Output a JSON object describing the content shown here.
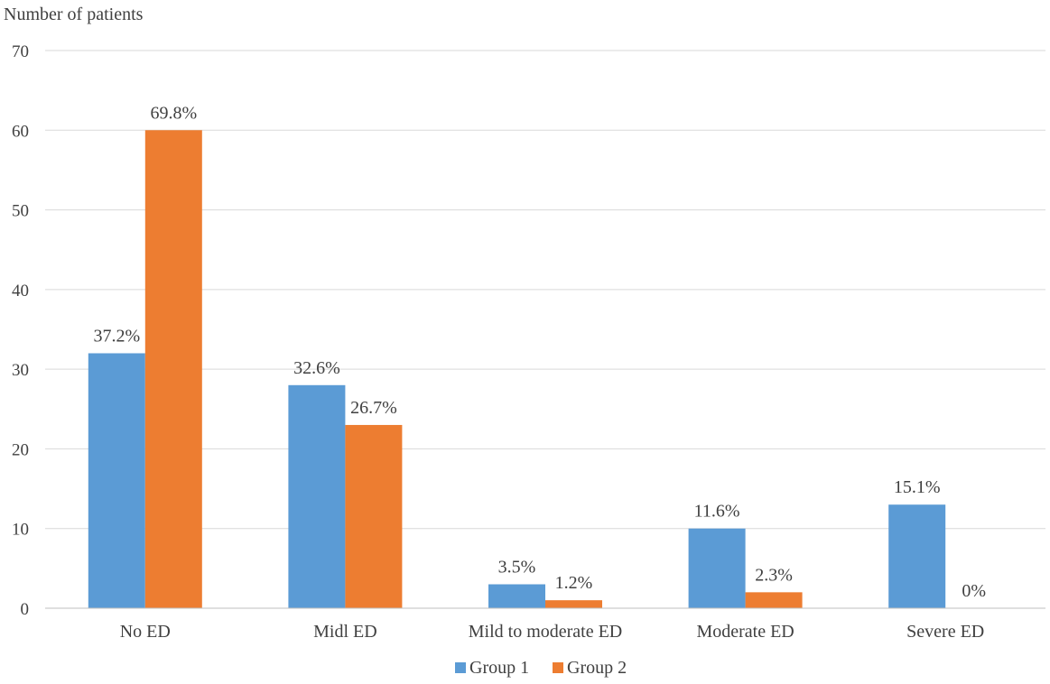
{
  "chart_data": {
    "type": "bar",
    "title": "",
    "ylabel": "Number of patients",
    "xlabel": "",
    "ylim": [
      0,
      70
    ],
    "yticks": [
      0,
      10,
      20,
      30,
      40,
      50,
      60,
      70
    ],
    "grid": true,
    "legend_position": "bottom",
    "categories": [
      "No ED",
      "Midl ED",
      "Mild to moderate ED",
      "Moderate ED",
      "Severe ED"
    ],
    "series": [
      {
        "name": "Group 1",
        "color": "#5b9bd5",
        "values": [
          32,
          28,
          3,
          10,
          13
        ],
        "labels": [
          "37.2%",
          "32.6%",
          "3.5%",
          "11.6%",
          "15.1%"
        ]
      },
      {
        "name": "Group 2",
        "color": "#ed7d31",
        "values": [
          60,
          23,
          1,
          2,
          0
        ],
        "labels": [
          "69.8%",
          "26.7%",
          "1.2%",
          "2.3%",
          "0%"
        ]
      }
    ]
  }
}
